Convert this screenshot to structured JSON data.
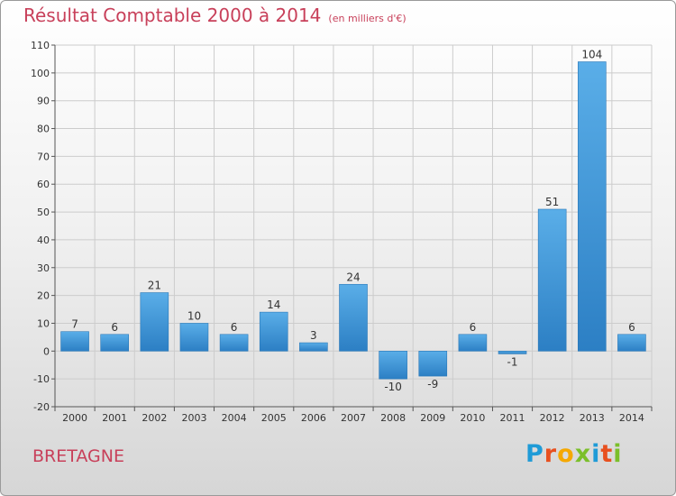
{
  "header": {
    "title": "Résultat Comptable 2000 à 2014",
    "subtitle": "(en milliers d'€)"
  },
  "footer": {
    "region": "BRETAGNE",
    "logo": "Proxiti",
    "logo_colors": [
      "#1f9bd7",
      "#e8501f",
      "#f5a800",
      "#7bbf2a",
      "#1f9bd7",
      "#e8501f",
      "#7bbf2a"
    ]
  },
  "colors": {
    "bar_top": "#5aaee8",
    "bar_bottom": "#2c7fc4",
    "title": "#c8405a",
    "grid": "#cccccc"
  },
  "chart_data": {
    "type": "bar",
    "title": "Résultat Comptable 2000 à 2014",
    "xlabel": "",
    "ylabel": "",
    "ylim": [
      -20,
      110
    ],
    "yticks": [
      -20,
      -10,
      0,
      10,
      20,
      30,
      40,
      50,
      60,
      70,
      80,
      90,
      100,
      110
    ],
    "categories": [
      "2000",
      "2001",
      "2002",
      "2003",
      "2004",
      "2005",
      "2006",
      "2007",
      "2008",
      "2009",
      "2010",
      "2011",
      "2012",
      "2013",
      "2014"
    ],
    "values": [
      7,
      6,
      21,
      10,
      6,
      14,
      3,
      24,
      -10,
      -9,
      6,
      -1,
      51,
      104,
      6
    ],
    "labels": [
      "7",
      "6",
      "21",
      "10",
      "6",
      "14",
      "3",
      "24",
      "-10",
      "-9",
      "6",
      "-1",
      "51",
      "104",
      "6"
    ],
    "grid": true
  }
}
